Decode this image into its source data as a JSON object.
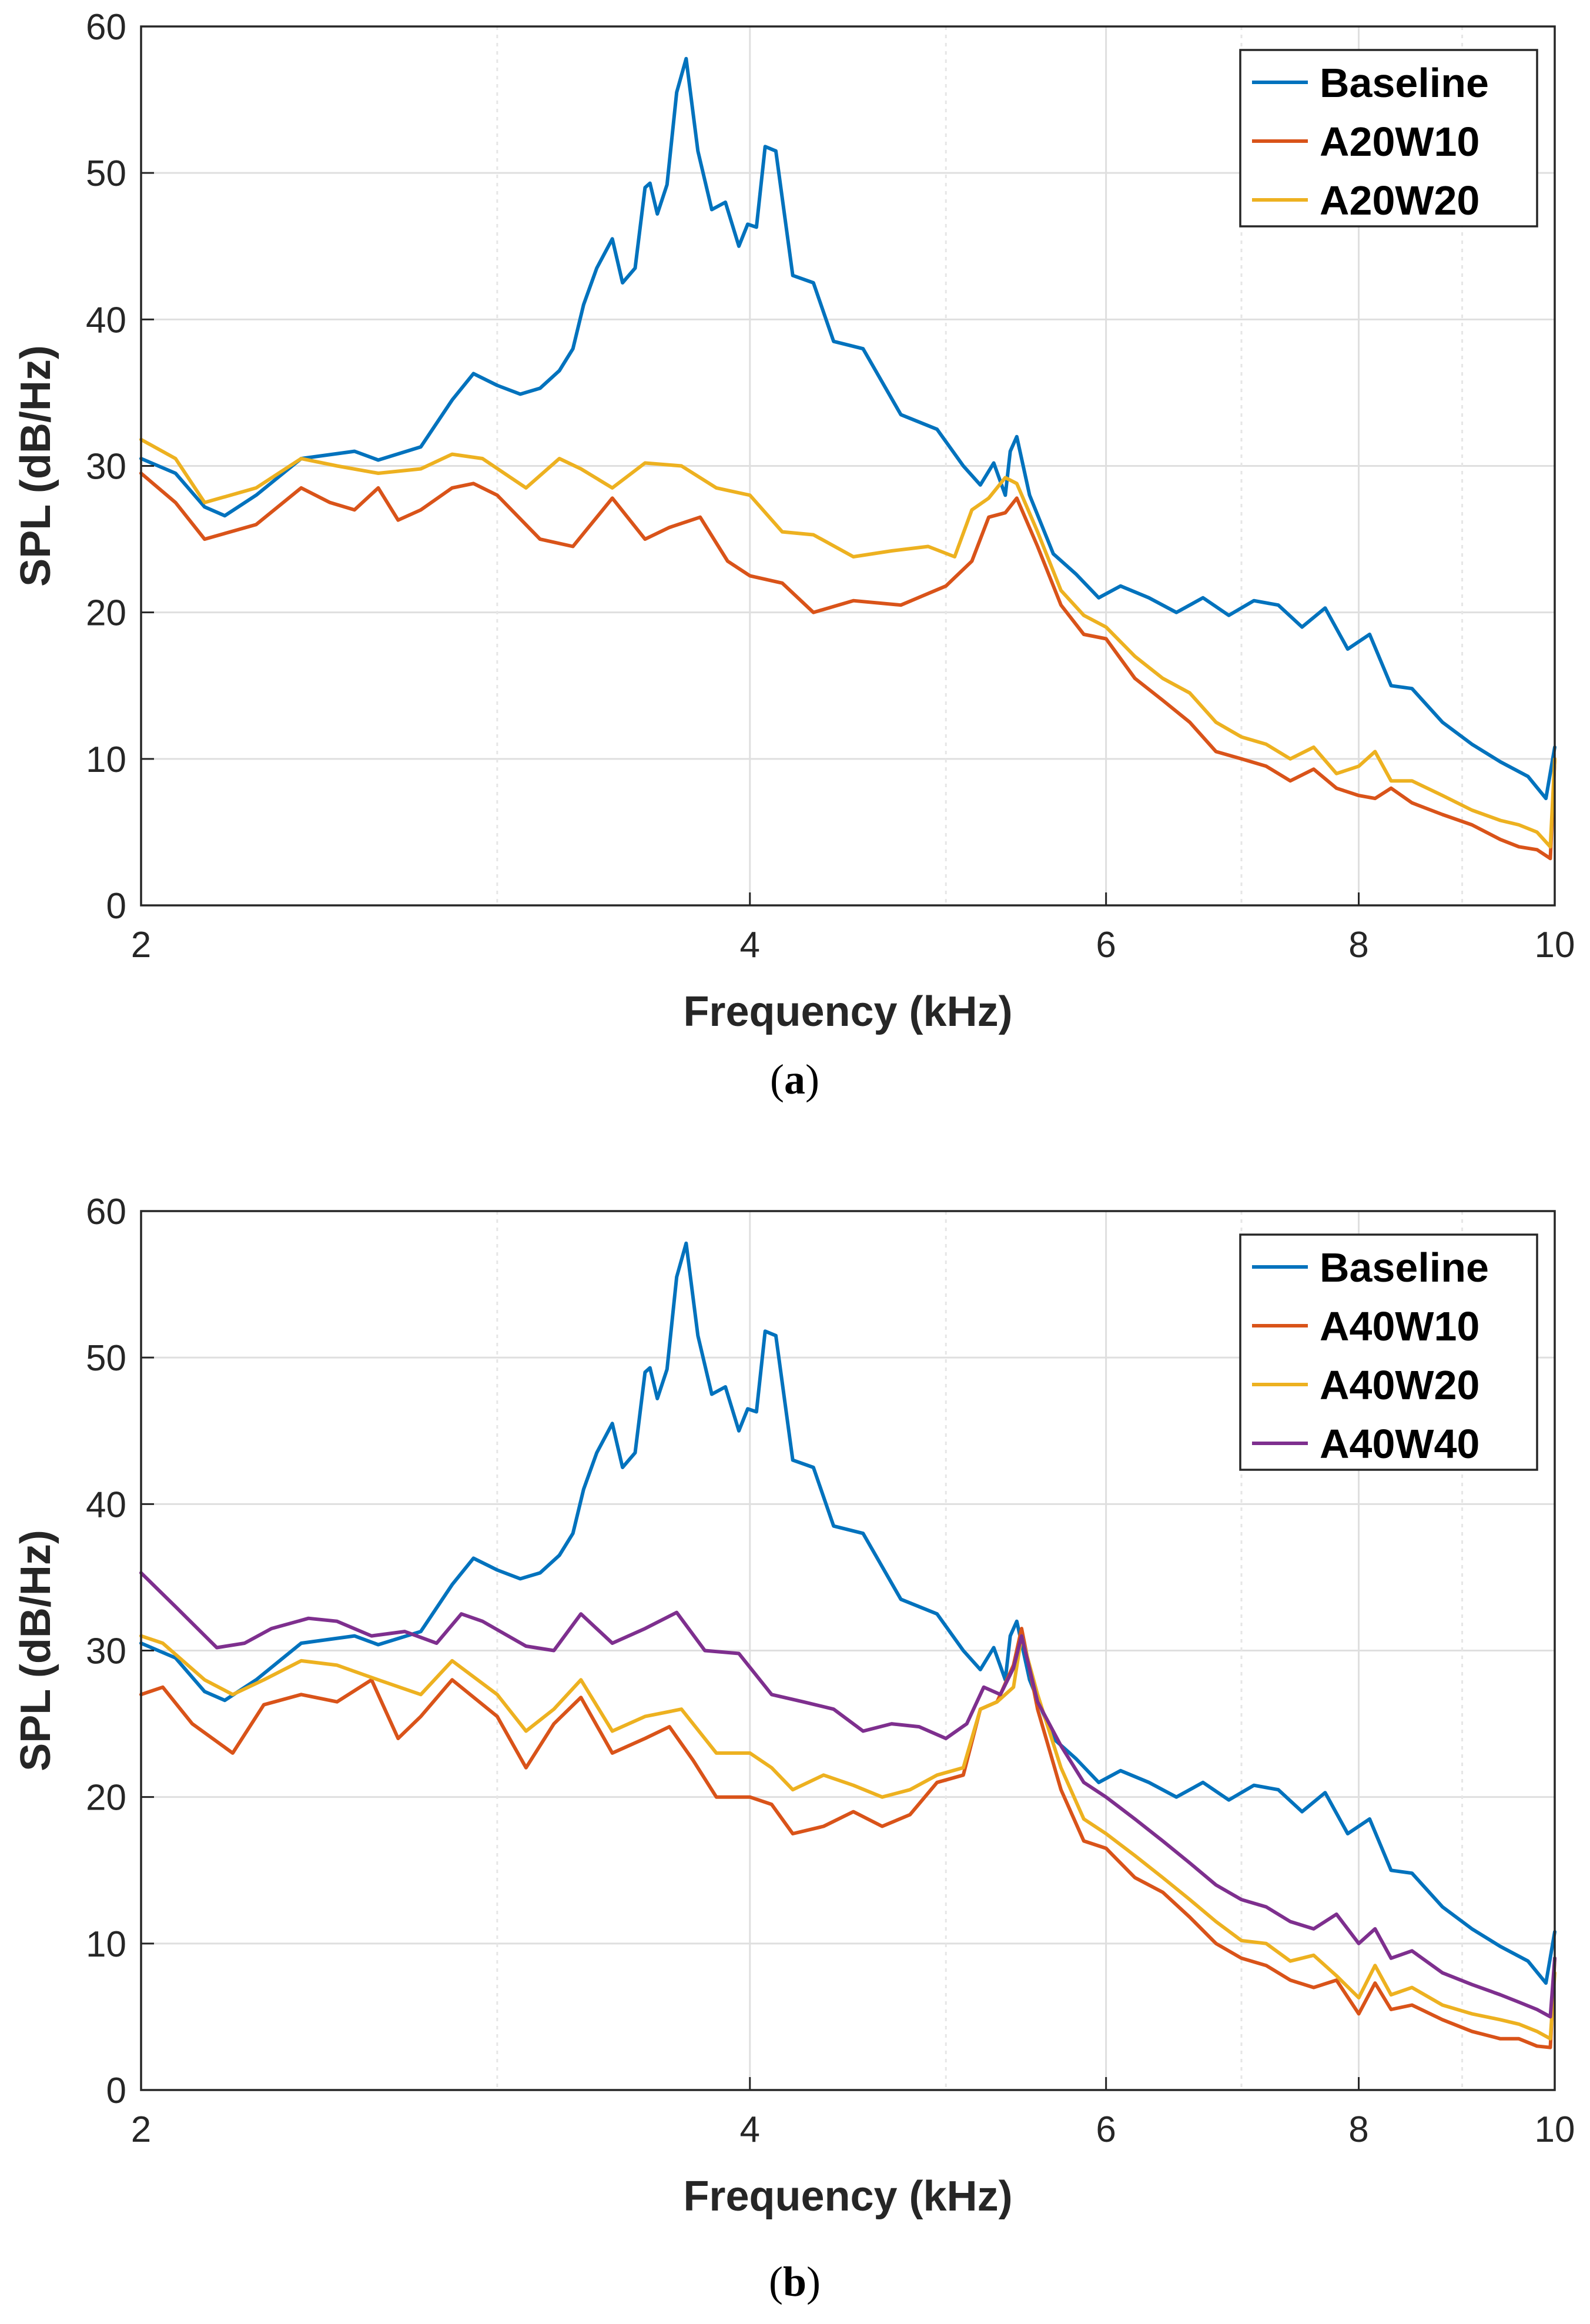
{
  "colors": {
    "Baseline": "#0072BD",
    "A20W10": "#D95319",
    "A20W20": "#EDB120",
    "A40W10": "#D95319",
    "A40W20": "#EDB120",
    "A40W40": "#7E2F8E"
  },
  "chart_data": [
    {
      "panel": "a",
      "caption": "a",
      "type": "line",
      "xscale": "log",
      "xlim": [
        2,
        10
      ],
      "ylim": [
        0,
        60
      ],
      "xticks": [
        2,
        4,
        6,
        8,
        10
      ],
      "yticks": [
        0,
        10,
        20,
        30,
        40,
        50,
        60
      ],
      "xlabel": "Frequency (kHz)",
      "ylabel": "SPL (dB/Hz)",
      "grid": true,
      "legend_position": "top-right",
      "legend": [
        "Baseline",
        "A20W10",
        "A20W20"
      ],
      "series": [
        {
          "name": "Baseline",
          "x": [
            2.0,
            2.08,
            2.15,
            2.2,
            2.28,
            2.4,
            2.55,
            2.62,
            2.75,
            2.85,
            2.92,
            3.0,
            3.08,
            3.15,
            3.22,
            3.27,
            3.31,
            3.36,
            3.42,
            3.46,
            3.51,
            3.55,
            3.57,
            3.6,
            3.64,
            3.68,
            3.72,
            3.77,
            3.83,
            3.89,
            3.95,
            3.99,
            4.03,
            4.07,
            4.12,
            4.2,
            4.3,
            4.4,
            4.55,
            4.75,
            4.95,
            5.1,
            5.2,
            5.28,
            5.35,
            5.38,
            5.42,
            5.5,
            5.65,
            5.8,
            5.95,
            6.1,
            6.3,
            6.5,
            6.7,
            6.9,
            7.1,
            7.3,
            7.5,
            7.7,
            7.9,
            8.1,
            8.3,
            8.5,
            8.8,
            9.1,
            9.4,
            9.7,
            9.9,
            10.0
          ],
          "y": [
            30.5,
            29.5,
            27.2,
            26.6,
            28.0,
            30.5,
            31.0,
            30.4,
            31.3,
            34.5,
            36.3,
            35.5,
            34.9,
            35.3,
            36.5,
            38.0,
            41.0,
            43.5,
            45.5,
            42.5,
            43.5,
            49.0,
            49.3,
            47.2,
            49.2,
            55.5,
            57.8,
            51.5,
            47.5,
            48.0,
            45.0,
            46.5,
            46.3,
            51.8,
            51.5,
            43.0,
            42.5,
            38.5,
            38.0,
            33.5,
            32.5,
            30.0,
            28.7,
            30.2,
            28.0,
            31.0,
            32.0,
            28.0,
            24.0,
            22.6,
            21.0,
            21.8,
            21.0,
            20.0,
            21.0,
            19.8,
            20.8,
            20.5,
            19.0,
            20.3,
            17.5,
            18.5,
            15.0,
            14.8,
            12.5,
            11.0,
            9.8,
            8.8,
            7.3,
            10.8
          ]
        },
        {
          "name": "A20W10",
          "x": [
            2.0,
            2.08,
            2.15,
            2.28,
            2.4,
            2.48,
            2.55,
            2.62,
            2.68,
            2.75,
            2.85,
            2.92,
            3.0,
            3.15,
            3.27,
            3.42,
            3.55,
            3.65,
            3.78,
            3.9,
            4.0,
            4.15,
            4.3,
            4.5,
            4.75,
            5.0,
            5.15,
            5.25,
            5.35,
            5.42,
            5.55,
            5.7,
            5.85,
            6.0,
            6.2,
            6.4,
            6.6,
            6.8,
            7.0,
            7.2,
            7.4,
            7.6,
            7.8,
            8.0,
            8.15,
            8.3,
            8.5,
            8.8,
            9.1,
            9.4,
            9.6,
            9.8,
            9.95,
            10.0
          ],
          "y": [
            29.5,
            27.5,
            25.0,
            26.0,
            28.5,
            27.5,
            27.0,
            28.5,
            26.3,
            27.0,
            28.5,
            28.8,
            28.0,
            25.0,
            24.5,
            27.8,
            25.0,
            25.8,
            26.5,
            23.5,
            22.5,
            22.0,
            20.0,
            20.8,
            20.5,
            21.8,
            23.5,
            26.5,
            26.8,
            27.8,
            24.5,
            20.5,
            18.5,
            18.2,
            15.5,
            14.0,
            12.5,
            10.5,
            10.0,
            9.5,
            8.5,
            9.3,
            8.0,
            7.5,
            7.3,
            8.0,
            7.0,
            6.2,
            5.5,
            4.5,
            4.0,
            3.8,
            3.2,
            10.0
          ]
        },
        {
          "name": "A20W20",
          "x": [
            2.0,
            2.08,
            2.15,
            2.28,
            2.4,
            2.5,
            2.62,
            2.75,
            2.85,
            2.95,
            3.1,
            3.22,
            3.3,
            3.42,
            3.55,
            3.7,
            3.85,
            4.0,
            4.15,
            4.3,
            4.5,
            4.7,
            4.9,
            5.05,
            5.15,
            5.25,
            5.35,
            5.42,
            5.55,
            5.7,
            5.85,
            6.0,
            6.2,
            6.4,
            6.6,
            6.8,
            7.0,
            7.2,
            7.4,
            7.6,
            7.8,
            8.0,
            8.15,
            8.3,
            8.5,
            8.8,
            9.1,
            9.4,
            9.6,
            9.8,
            9.95,
            10.0
          ],
          "y": [
            31.8,
            30.5,
            27.5,
            28.5,
            30.5,
            30.0,
            29.5,
            29.8,
            30.8,
            30.5,
            28.5,
            30.5,
            29.8,
            28.5,
            30.2,
            30.0,
            28.5,
            28.0,
            25.5,
            25.3,
            23.8,
            24.2,
            24.5,
            23.8,
            27.0,
            27.8,
            29.2,
            28.8,
            25.5,
            21.5,
            19.8,
            19.0,
            17.0,
            15.5,
            14.5,
            12.5,
            11.5,
            11.0,
            10.0,
            10.8,
            9.0,
            9.5,
            10.5,
            8.5,
            8.5,
            7.5,
            6.5,
            5.8,
            5.5,
            5.0,
            4.0,
            10.0
          ]
        }
      ]
    },
    {
      "panel": "b",
      "caption": "b",
      "type": "line",
      "xscale": "log",
      "xlim": [
        2,
        10
      ],
      "ylim": [
        0,
        60
      ],
      "xticks": [
        2,
        4,
        6,
        8,
        10
      ],
      "yticks": [
        0,
        10,
        20,
        30,
        40,
        50,
        60
      ],
      "xlabel": "Frequency (kHz)",
      "ylabel": "SPL (dB/Hz)",
      "grid": true,
      "legend_position": "top-right",
      "legend": [
        "Baseline",
        "A40W10",
        "A40W20",
        "A40W40"
      ],
      "series": [
        {
          "name": "Baseline",
          "x": [
            2.0,
            2.08,
            2.15,
            2.2,
            2.28,
            2.4,
            2.55,
            2.62,
            2.75,
            2.85,
            2.92,
            3.0,
            3.08,
            3.15,
            3.22,
            3.27,
            3.31,
            3.36,
            3.42,
            3.46,
            3.51,
            3.55,
            3.57,
            3.6,
            3.64,
            3.68,
            3.72,
            3.77,
            3.83,
            3.89,
            3.95,
            3.99,
            4.03,
            4.07,
            4.12,
            4.2,
            4.3,
            4.4,
            4.55,
            4.75,
            4.95,
            5.1,
            5.2,
            5.28,
            5.35,
            5.38,
            5.42,
            5.5,
            5.65,
            5.8,
            5.95,
            6.1,
            6.3,
            6.5,
            6.7,
            6.9,
            7.1,
            7.3,
            7.5,
            7.7,
            7.9,
            8.1,
            8.3,
            8.5,
            8.8,
            9.1,
            9.4,
            9.7,
            9.9,
            10.0
          ],
          "y": [
            30.5,
            29.5,
            27.2,
            26.6,
            28.0,
            30.5,
            31.0,
            30.4,
            31.3,
            34.5,
            36.3,
            35.5,
            34.9,
            35.3,
            36.5,
            38.0,
            41.0,
            43.5,
            45.5,
            42.5,
            43.5,
            49.0,
            49.3,
            47.2,
            49.2,
            55.5,
            57.8,
            51.5,
            47.5,
            48.0,
            45.0,
            46.5,
            46.3,
            51.8,
            51.5,
            43.0,
            42.5,
            38.5,
            38.0,
            33.5,
            32.5,
            30.0,
            28.7,
            30.2,
            28.0,
            31.0,
            32.0,
            28.0,
            24.0,
            22.6,
            21.0,
            21.8,
            21.0,
            20.0,
            21.0,
            19.8,
            20.8,
            20.5,
            19.0,
            20.3,
            17.5,
            18.5,
            15.0,
            14.8,
            12.5,
            11.0,
            9.8,
            8.8,
            7.3,
            10.8
          ]
        },
        {
          "name": "A40W10",
          "x": [
            2.0,
            2.05,
            2.12,
            2.22,
            2.3,
            2.4,
            2.5,
            2.6,
            2.68,
            2.75,
            2.85,
            3.0,
            3.1,
            3.2,
            3.3,
            3.42,
            3.55,
            3.65,
            3.75,
            3.85,
            4.0,
            4.1,
            4.2,
            4.35,
            4.5,
            4.65,
            4.8,
            4.95,
            5.1,
            5.2,
            5.3,
            5.4,
            5.45,
            5.55,
            5.7,
            5.85,
            6.0,
            6.2,
            6.4,
            6.6,
            6.8,
            7.0,
            7.2,
            7.4,
            7.6,
            7.8,
            8.0,
            8.15,
            8.3,
            8.5,
            8.8,
            9.1,
            9.4,
            9.6,
            9.8,
            9.95,
            10.0
          ],
          "y": [
            27.0,
            27.5,
            25.0,
            23.0,
            26.3,
            27.0,
            26.5,
            28.0,
            24.0,
            25.5,
            28.0,
            25.5,
            22.0,
            25.0,
            26.8,
            23.0,
            24.0,
            24.8,
            22.5,
            20.0,
            20.0,
            19.5,
            17.5,
            18.0,
            19.0,
            18.0,
            18.8,
            21.0,
            21.5,
            26.0,
            26.5,
            29.0,
            31.5,
            26.0,
            20.5,
            17.0,
            16.5,
            14.5,
            13.5,
            11.8,
            10.0,
            9.0,
            8.5,
            7.5,
            7.0,
            7.5,
            5.2,
            7.3,
            5.5,
            5.8,
            4.8,
            4.0,
            3.5,
            3.5,
            3.0,
            2.9,
            9.0
          ]
        },
        {
          "name": "A40W20",
          "x": [
            2.0,
            2.05,
            2.15,
            2.22,
            2.3,
            2.4,
            2.5,
            2.62,
            2.75,
            2.85,
            3.0,
            3.1,
            3.2,
            3.3,
            3.42,
            3.55,
            3.7,
            3.85,
            4.0,
            4.1,
            4.2,
            4.35,
            4.5,
            4.65,
            4.8,
            4.95,
            5.1,
            5.2,
            5.3,
            5.4,
            5.45,
            5.55,
            5.7,
            5.85,
            6.0,
            6.2,
            6.4,
            6.6,
            6.8,
            7.0,
            7.2,
            7.4,
            7.6,
            7.8,
            8.0,
            8.15,
            8.3,
            8.5,
            8.8,
            9.1,
            9.4,
            9.6,
            9.8,
            9.95,
            10.0
          ],
          "y": [
            31.0,
            30.5,
            28.0,
            27.0,
            28.0,
            29.3,
            29.0,
            28.0,
            27.0,
            29.3,
            27.0,
            24.5,
            26.0,
            28.0,
            24.5,
            25.5,
            26.0,
            23.0,
            23.0,
            22.0,
            20.5,
            21.5,
            20.8,
            20.0,
            20.5,
            21.5,
            22.0,
            26.0,
            26.5,
            27.5,
            31.0,
            27.0,
            22.0,
            18.5,
            17.5,
            16.0,
            14.5,
            13.0,
            11.5,
            10.2,
            10.0,
            8.8,
            9.2,
            7.8,
            6.3,
            8.5,
            6.5,
            7.0,
            5.8,
            5.2,
            4.8,
            4.5,
            4.0,
            3.5,
            8.0
          ]
        },
        {
          "name": "A40W40",
          "x": [
            2.0,
            2.08,
            2.18,
            2.25,
            2.32,
            2.42,
            2.5,
            2.6,
            2.7,
            2.8,
            2.88,
            2.95,
            3.1,
            3.2,
            3.3,
            3.42,
            3.55,
            3.68,
            3.8,
            3.95,
            4.1,
            4.25,
            4.4,
            4.55,
            4.7,
            4.85,
            5.0,
            5.12,
            5.22,
            5.32,
            5.4,
            5.45,
            5.55,
            5.7,
            5.85,
            6.0,
            6.2,
            6.4,
            6.6,
            6.8,
            7.0,
            7.2,
            7.4,
            7.6,
            7.8,
            8.0,
            8.15,
            8.3,
            8.5,
            8.8,
            9.1,
            9.4,
            9.6,
            9.8,
            9.95,
            10.0
          ],
          "y": [
            35.3,
            33.0,
            30.2,
            30.5,
            31.5,
            32.2,
            32.0,
            31.0,
            31.3,
            30.5,
            32.5,
            32.0,
            30.3,
            30.0,
            32.5,
            30.5,
            31.5,
            32.6,
            30.0,
            29.8,
            27.0,
            26.5,
            26.0,
            24.5,
            25.0,
            24.8,
            24.0,
            25.0,
            27.5,
            27.0,
            28.8,
            31.0,
            26.5,
            23.5,
            21.0,
            20.0,
            18.5,
            17.0,
            15.5,
            14.0,
            13.0,
            12.5,
            11.5,
            11.0,
            12.0,
            10.0,
            11.0,
            9.0,
            9.5,
            8.0,
            7.2,
            6.5,
            6.0,
            5.5,
            5.0,
            9.0
          ]
        }
      ]
    }
  ]
}
